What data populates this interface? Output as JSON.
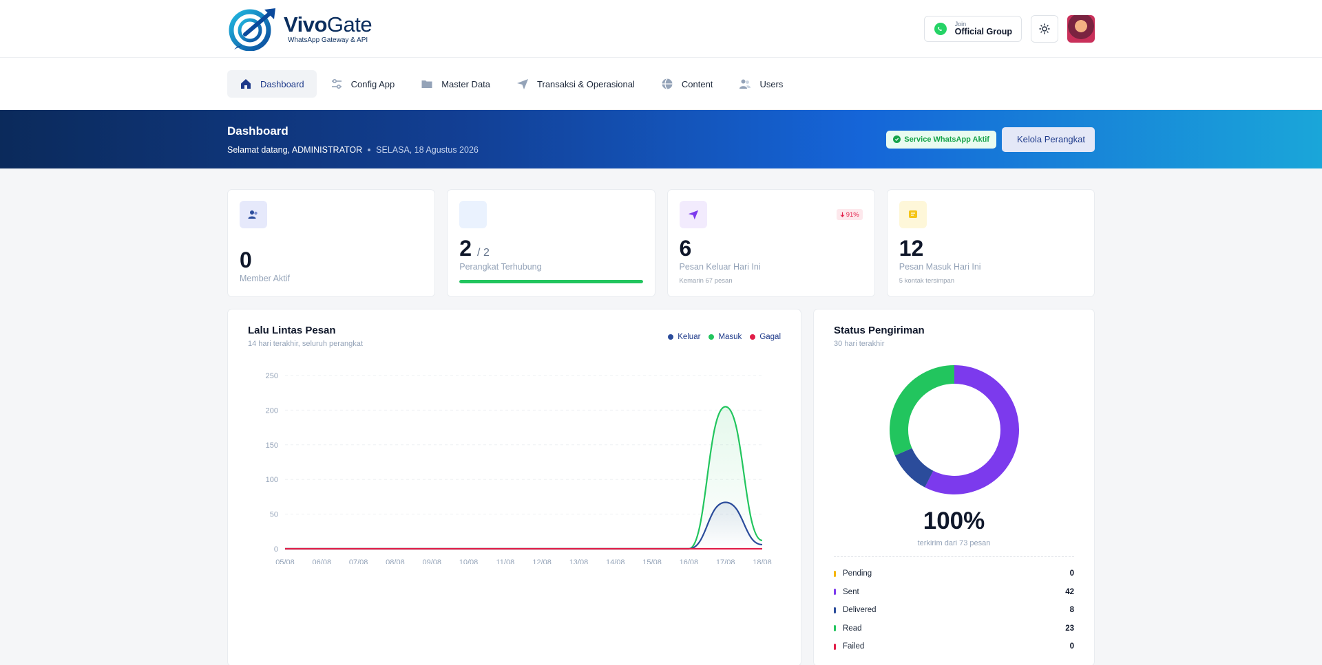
{
  "brand": {
    "name_bold": "Vivo",
    "name_light": "Gate",
    "tagline": "WhatsApp Gateway & API"
  },
  "header": {
    "join_small": "Join",
    "join_big": "Official Group"
  },
  "nav": {
    "items": [
      {
        "label": "Dashboard",
        "icon": "home-icon",
        "active": true
      },
      {
        "label": "Config App",
        "icon": "sliders-icon"
      },
      {
        "label": "Master Data",
        "icon": "folder-icon"
      },
      {
        "label": "Transaksi & Operasional",
        "icon": "send-icon"
      },
      {
        "label": "Content",
        "icon": "globe-icon"
      },
      {
        "label": "Users",
        "icon": "users-icon"
      }
    ]
  },
  "banner": {
    "title": "Dashboard",
    "welcome": "Selamat datang, ADMINISTRATOR",
    "date": "SELASA, 18 Agustus 2026",
    "service_badge": "Service WhatsApp Aktif",
    "manage_button": "Kelola Perangkat"
  },
  "stats": {
    "members": {
      "value": "0",
      "label": "Member Aktif"
    },
    "devices": {
      "value": "2",
      "total": "/ 2",
      "label": "Perangkat Terhubung",
      "progress": 1.0
    },
    "outgoing": {
      "value": "6",
      "label": "Pesan Keluar Hari Ini",
      "sub": "Kemarin 67 pesan",
      "trend": "91%"
    },
    "incoming": {
      "value": "12",
      "label": "Pesan Masuk Hari Ini",
      "sub": "5 kontak tersimpan"
    }
  },
  "traffic": {
    "title": "Lalu Lintas Pesan",
    "subtitle": "14 hari terakhir, seluruh perangkat"
  },
  "status": {
    "title": "Status Pengiriman",
    "subtitle": "30 hari terakhir",
    "percent": "100%",
    "percent_sub": "terkirim dari 73 pesan",
    "rows": [
      {
        "label": "Pending",
        "value": "0",
        "color": "#f5b400"
      },
      {
        "label": "Sent",
        "value": "42",
        "color": "#7c3aed"
      },
      {
        "label": "Delivered",
        "value": "8",
        "color": "#2b4c9b"
      },
      {
        "label": "Read",
        "value": "23",
        "color": "#22c55e"
      },
      {
        "label": "Failed",
        "value": "0",
        "color": "#e11d48"
      }
    ]
  },
  "chart_data": [
    {
      "type": "area",
      "categories": [
        "05/08",
        "06/08",
        "07/08",
        "08/08",
        "09/08",
        "10/08",
        "11/08",
        "12/08",
        "13/08",
        "14/08",
        "15/08",
        "16/08",
        "17/08",
        "18/08"
      ],
      "series": [
        {
          "name": "Keluar",
          "color": "#2b4c9b",
          "values": [
            0,
            0,
            0,
            0,
            0,
            0,
            0,
            0,
            0,
            0,
            0,
            0,
            67,
            6
          ]
        },
        {
          "name": "Masuk",
          "color": "#22c55e",
          "values": [
            0,
            0,
            0,
            0,
            0,
            0,
            0,
            0,
            0,
            0,
            0,
            0,
            205,
            12
          ]
        },
        {
          "name": "Gagal",
          "color": "#e11d48",
          "values": [
            0,
            0,
            0,
            0,
            0,
            0,
            0,
            0,
            0,
            0,
            0,
            0,
            0,
            0
          ]
        }
      ],
      "ylim": [
        0,
        250
      ],
      "yticks": [
        0,
        50,
        100,
        150,
        200,
        250
      ],
      "grid": true,
      "legend": "top-right"
    },
    {
      "type": "pie",
      "categories": [
        "Pending",
        "Sent",
        "Delivered",
        "Read",
        "Failed"
      ],
      "values": [
        0,
        42,
        8,
        23,
        0
      ],
      "colors": [
        "#f5b400",
        "#7c3aed",
        "#2b4c9b",
        "#22c55e",
        "#e11d48"
      ]
    }
  ]
}
